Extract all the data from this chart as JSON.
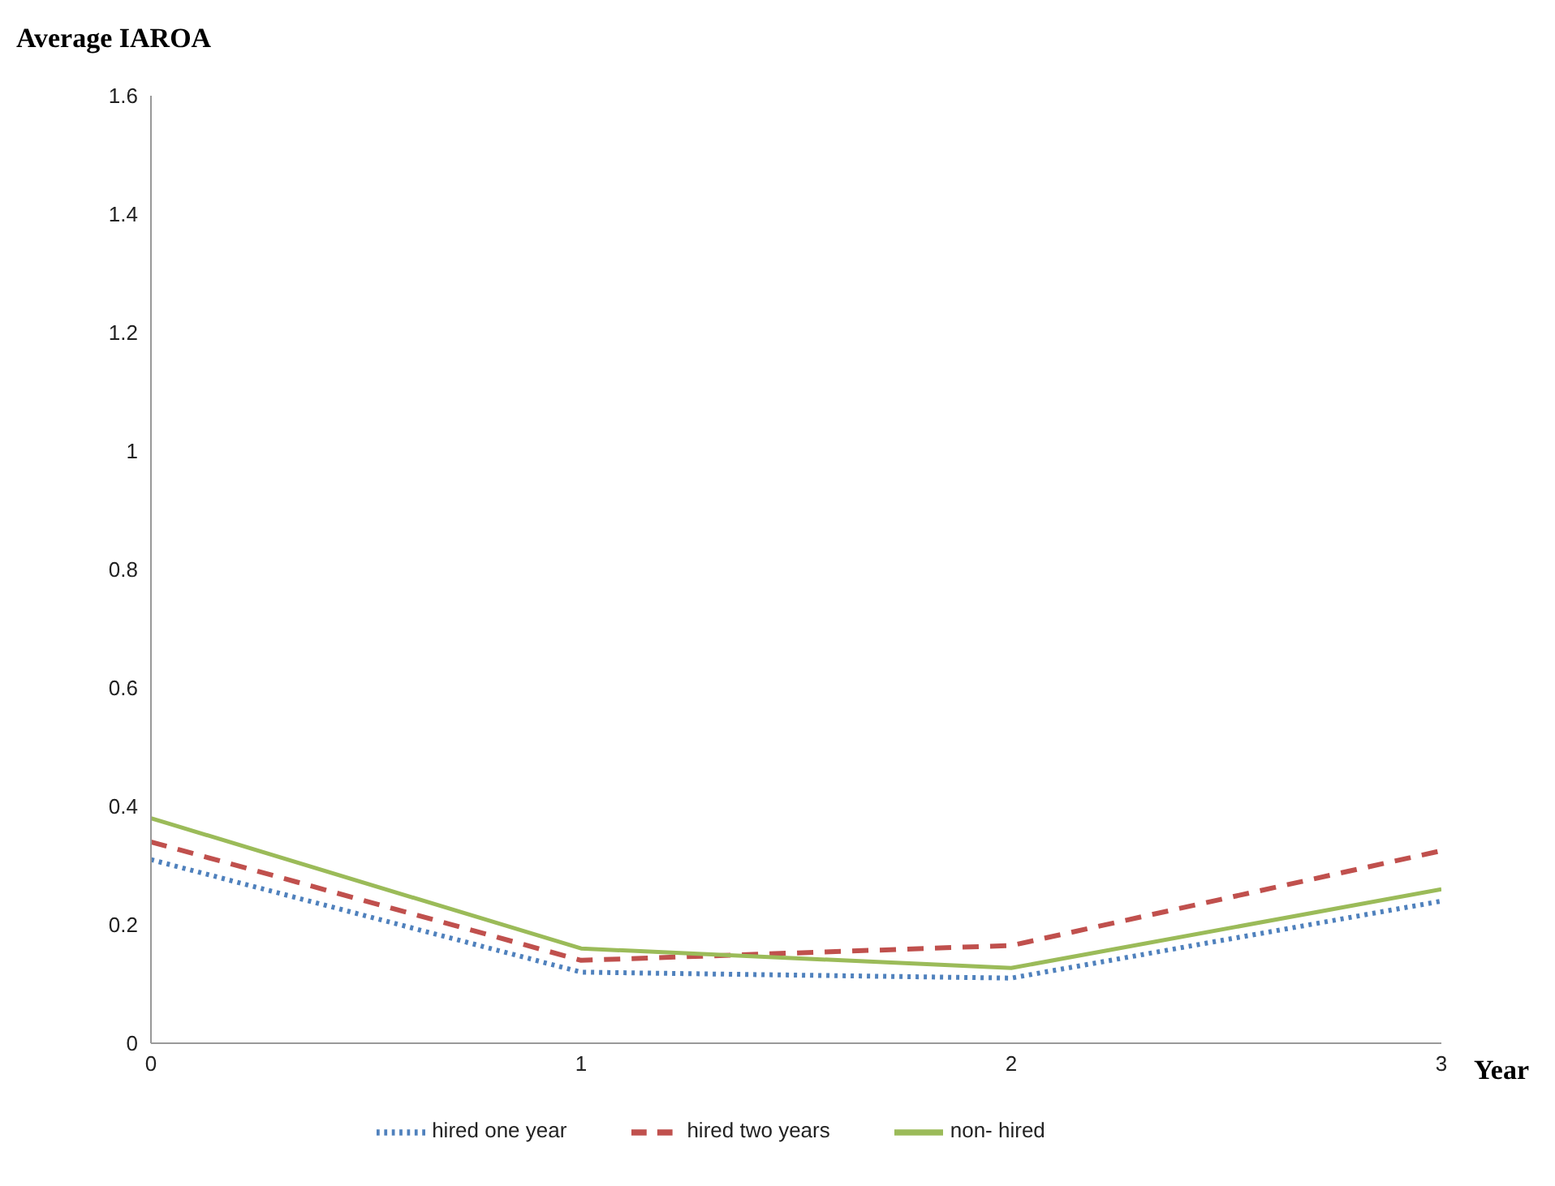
{
  "chart_data": {
    "type": "line",
    "ylabel": "Average IAROA",
    "xlabel": "Year",
    "x": [
      0,
      1,
      2,
      3
    ],
    "xlim": [
      0,
      3
    ],
    "xticks": [
      0,
      1,
      2,
      3
    ],
    "ylim": [
      0,
      1.6
    ],
    "yticks": [
      0,
      0.2,
      0.4,
      0.6,
      0.8,
      1,
      1.2,
      1.4,
      1.6
    ],
    "grid": false,
    "legend": "bottom",
    "marker": "none",
    "series": [
      {
        "name": "hired one year",
        "color": "#4f81bd",
        "line_style": "dotted",
        "values": [
          0.31,
          0.12,
          0.11,
          0.24
        ]
      },
      {
        "name": "hired two years",
        "color": "#c0504d",
        "line_style": "dashed",
        "values": [
          0.34,
          0.14,
          0.165,
          0.325
        ]
      },
      {
        "name": "non- hired",
        "color": "#9bbb59",
        "line_style": "solid",
        "values": [
          0.38,
          0.16,
          0.127,
          0.26
        ]
      }
    ]
  }
}
